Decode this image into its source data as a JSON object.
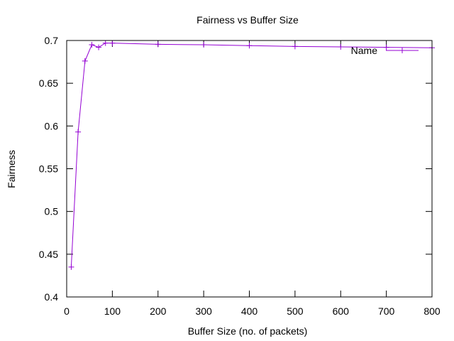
{
  "chart_data": {
    "type": "line",
    "title": "Fairness vs Buffer Size",
    "xlabel": "Buffer Size (no. of packets)",
    "ylabel": "Fairness",
    "xlim": [
      0,
      800
    ],
    "ylim": [
      0.4,
      0.7
    ],
    "x_ticks": [
      "0",
      "100",
      "200",
      "300",
      "400",
      "500",
      "600",
      "700",
      "800"
    ],
    "y_ticks": [
      "0.4",
      "0.45",
      "0.5",
      "0.55",
      "0.6",
      "0.65",
      "0.7"
    ],
    "grid": false,
    "legend_position": "top-right",
    "series": [
      {
        "name": "Name",
        "color": "#9400d3",
        "marker": "plus",
        "x": [
          10,
          25,
          40,
          55,
          70,
          85,
          100,
          200,
          300,
          400,
          500,
          600,
          700,
          800
        ],
        "y": [
          0.435,
          0.593,
          0.676,
          0.695,
          0.692,
          0.697,
          0.697,
          0.6955,
          0.695,
          0.694,
          0.693,
          0.6925,
          0.692,
          0.6915
        ]
      }
    ]
  }
}
